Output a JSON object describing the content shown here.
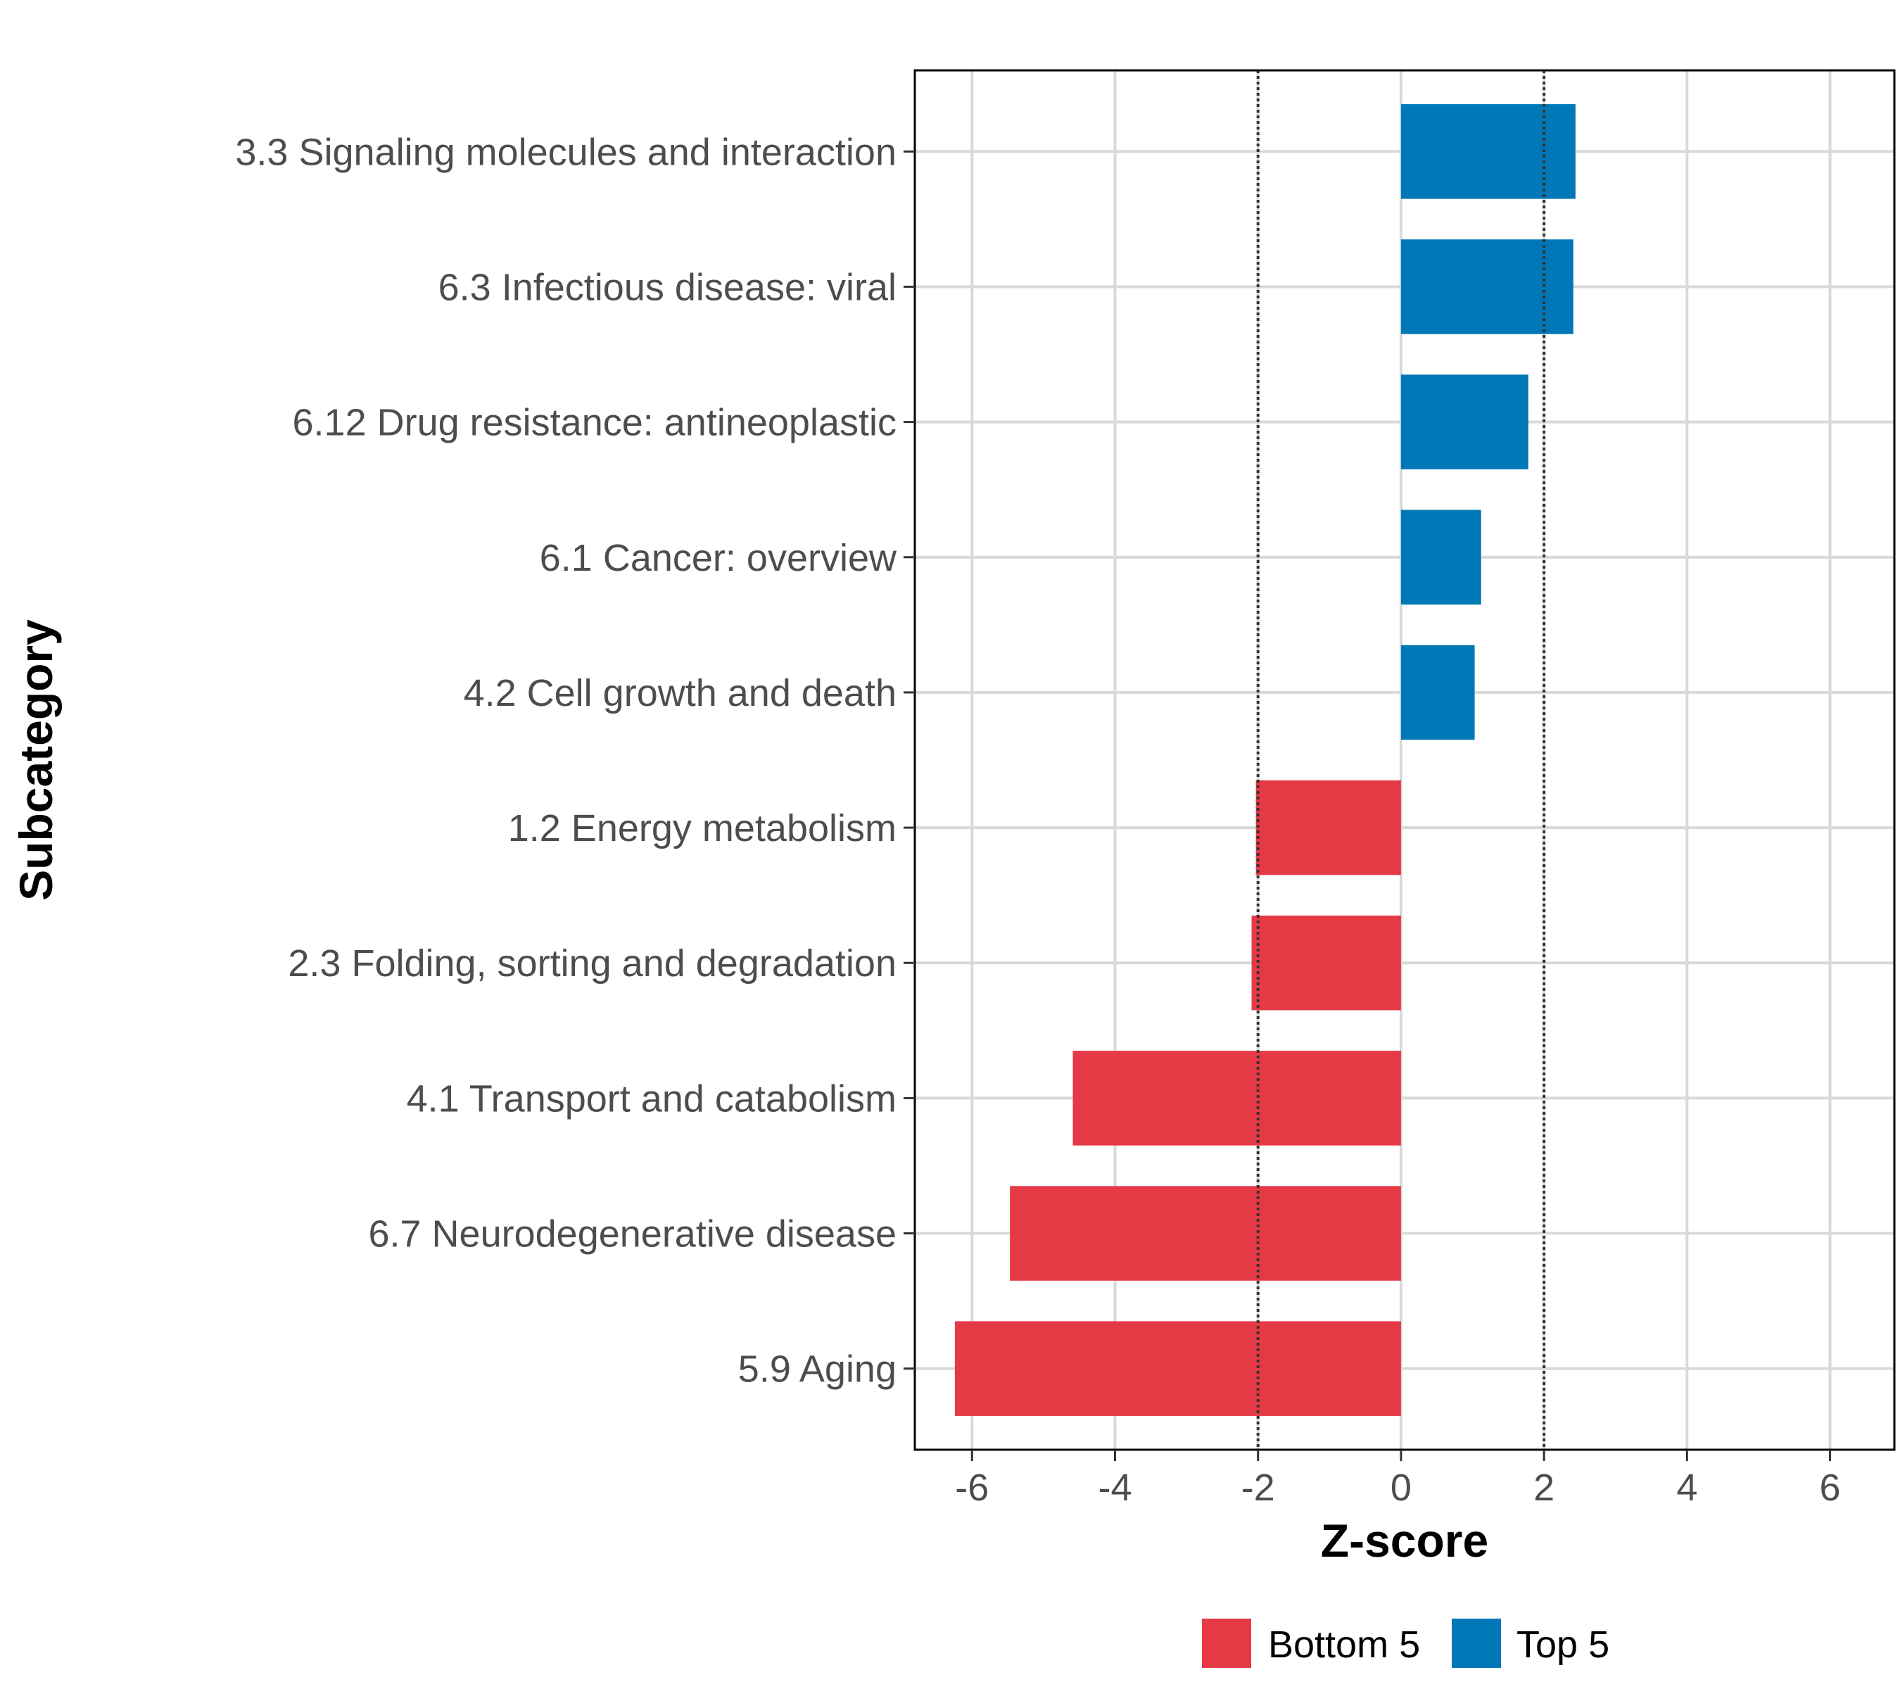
{
  "chart_data": {
    "type": "bar",
    "orientation": "horizontal",
    "xlabel": "Z-score",
    "ylabel": "Subcategory",
    "xlim": [
      -6.8,
      6.9
    ],
    "xticks": [
      -6,
      -4,
      -2,
      0,
      2,
      4,
      6
    ],
    "xtick_labels": [
      "-6",
      "-4",
      "-2",
      "0",
      "2",
      "4",
      "6"
    ],
    "reference_lines": [
      -2,
      2
    ],
    "grid": true,
    "legend_position": "bottom",
    "categories": [
      "3.3 Signaling molecules and interaction",
      "6.3 Infectious disease: viral",
      "6.12 Drug resistance: antineoplastic",
      "6.1 Cancer: overview",
      "4.2 Cell growth and death",
      "1.2 Energy metabolism",
      "2.3 Folding, sorting and degradation",
      "4.1 Transport and catabolism",
      "6.7 Neurodegenerative disease",
      "5.9 Aging"
    ],
    "values": [
      2.44,
      2.41,
      1.78,
      1.12,
      1.03,
      -2.03,
      -2.09,
      -4.59,
      -5.47,
      -6.24
    ],
    "groups": [
      "Top 5",
      "Top 5",
      "Top 5",
      "Top 5",
      "Top 5",
      "Bottom 5",
      "Bottom 5",
      "Bottom 5",
      "Bottom 5",
      "Bottom 5"
    ],
    "legend": [
      {
        "label": "Bottom 5",
        "color": "#e63946"
      },
      {
        "label": "Top 5",
        "color": "#0077b6"
      }
    ]
  }
}
